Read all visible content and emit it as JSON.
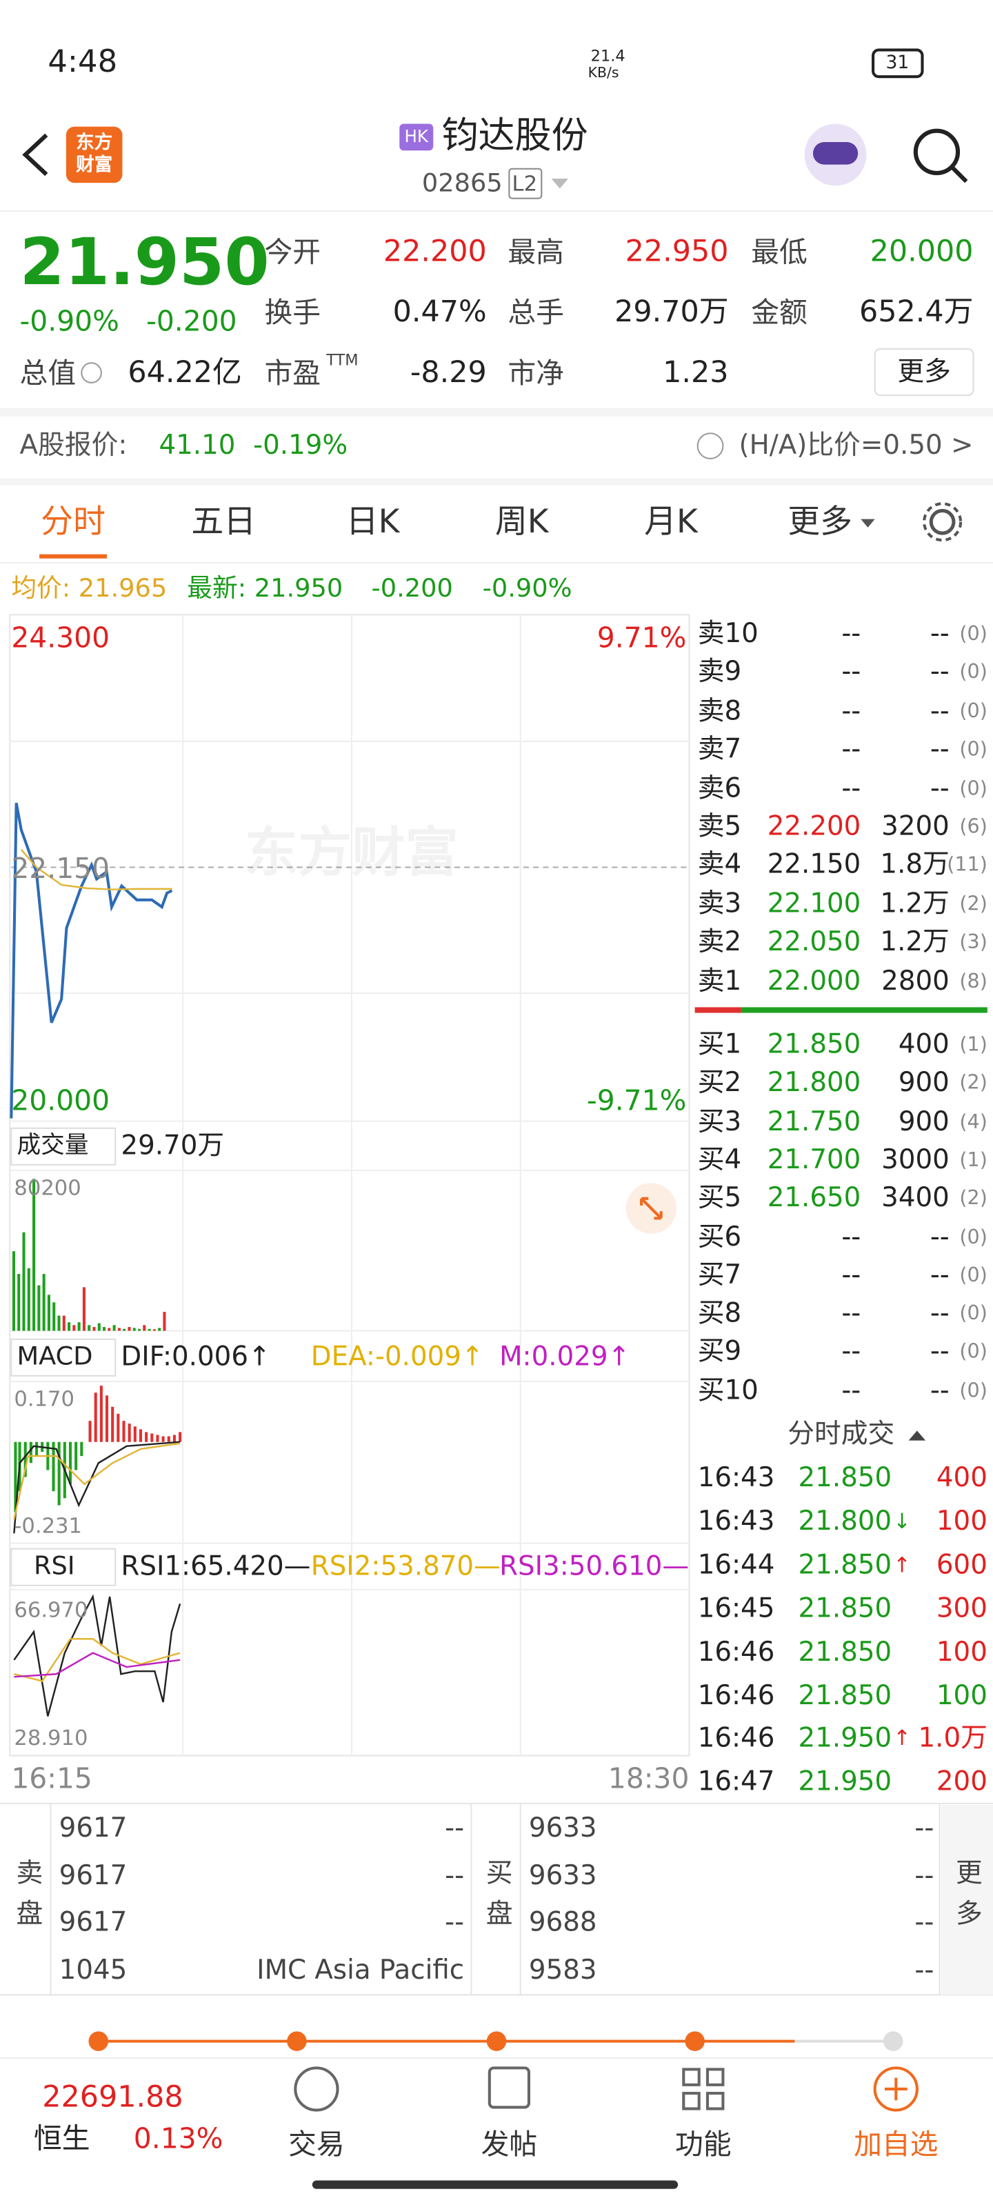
{
  "status": {
    "time": "4:48",
    "net_speed": "21.4",
    "net_unit": "KB/s",
    "battery": "31"
  },
  "header": {
    "logo": "东方财富",
    "market": "HK",
    "name": "钧达股份",
    "code": "02865",
    "level": "L2"
  },
  "quote": {
    "price": "21.950",
    "change_pct": "-0.90%",
    "change": "-0.200",
    "fields": [
      {
        "label": "今开",
        "value": "22.200"
      },
      {
        "label": "最高",
        "value": "22.950"
      },
      {
        "label": "最低",
        "value": "20.000"
      },
      {
        "label": "换手",
        "value": "0.47%"
      },
      {
        "label": "总手",
        "value": "29.70万"
      },
      {
        "label": "金额",
        "value": "652.4万"
      },
      {
        "label": "总值",
        "value": "64.22亿"
      },
      {
        "label": "市盈",
        "sup": "TTM",
        "value": "-8.29"
      },
      {
        "label": "市净",
        "value": "1.23"
      }
    ],
    "more": "更多"
  },
  "a_share": {
    "label": "A股报价:",
    "price": "41.10",
    "change_pct": "-0.19%",
    "ratio": "(H/A)比价=0.50 >"
  },
  "tabs": [
    "分时",
    "五日",
    "日K",
    "周K",
    "月K",
    "更多"
  ],
  "intraday": {
    "avg": "均价: 21.965",
    "latest": "最新: 21.950",
    "change": "-0.200",
    "change_pct": "-0.90%"
  },
  "chart_data": [
    {
      "type": "line",
      "watermark": "东方财富",
      "xlim": [
        0,
        135
      ],
      "xticks": [
        {
          "value": 0,
          "label": "16:15"
        },
        {
          "value": 135,
          "label": "18:30"
        }
      ],
      "ylim": [
        20,
        24.3
      ],
      "yticks": [
        {
          "value": 24.3,
          "label": "24.300"
        },
        {
          "value": 22.15,
          "label": "22.150"
        },
        {
          "value": 20,
          "label": "20.000"
        }
      ],
      "y2lim": [
        -9.71,
        9.71
      ],
      "y2ticks": [
        {
          "value": 9.71,
          "label": "9.71%"
        },
        {
          "value": -9.71,
          "label": "-9.71%"
        }
      ],
      "series": [
        {
          "color": "#2d6bb5",
          "x": [
            0,
            1,
            2,
            4,
            5,
            7,
            8,
            10,
            11,
            13,
            14,
            16,
            17,
            19,
            20,
            22,
            25,
            28,
            30,
            31,
            32
          ],
          "values": [
            20.0,
            22.7,
            22.47,
            22.23,
            22.11,
            21.26,
            20.82,
            21.02,
            21.63,
            21.87,
            21.99,
            22.17,
            22.05,
            22.11,
            21.81,
            21.99,
            21.87,
            21.87,
            21.81,
            21.93,
            21.95
          ]
        },
        {
          "color": "#e2b534",
          "x": [
            2,
            5,
            10,
            15,
            20,
            25,
            32
          ],
          "values": [
            22.3,
            22.15,
            22.0,
            21.97,
            21.96,
            21.965,
            21.965
          ]
        }
      ]
    },
    {
      "type": "bar",
      "label": "成交量",
      "total": "29.70万",
      "xlim": [
        0,
        135
      ],
      "ylim": [
        0,
        80200
      ],
      "yticks": [
        80200
      ],
      "values": [
        42000,
        30000,
        52000,
        33000,
        80200,
        24000,
        30000,
        19000,
        15000,
        8000,
        8000,
        4500,
        3000,
        4500,
        23000,
        3000,
        2000,
        4000,
        2000,
        1500,
        3000,
        1500,
        1000,
        2000,
        1500,
        1000,
        3000,
        1000,
        800,
        1500,
        10000
      ],
      "colors": [
        "#20a020",
        "#20a020",
        "#20a020",
        "#20a020",
        "#20a020",
        "#20a020",
        "#20a020",
        "#20a020",
        "#20a020",
        "#20a020",
        "#e03030",
        "#20a020",
        "#e03030",
        "#20a020",
        "#e03030",
        "#20a020",
        "#e03030",
        "#20a020",
        "#20a020",
        "#e03030",
        "#20a020",
        "#e03030",
        "#20a020",
        "#e03030",
        "#20a020",
        "#20a020",
        "#e03030",
        "#20a020",
        "#e03030",
        "#20a020",
        "#e03030"
      ]
    }
  ],
  "macd": {
    "label": "MACD",
    "dif": "DIF:0.006↑",
    "dea": "DEA:-0.009↑",
    "m": "M:0.029↑",
    "top": "0.170",
    "bottom": "-0.231"
  },
  "rsi": {
    "label": "RSI",
    "rsi1": "RSI1:65.420—",
    "rsi2": "RSI2:53.870—",
    "rsi3": "RSI3:50.610—",
    "top": "66.970",
    "bottom": "28.910"
  },
  "order_book": {
    "asks": [
      [
        "卖10",
        "--",
        "--",
        "(0)"
      ],
      [
        "卖9",
        "--",
        "--",
        "(0)"
      ],
      [
        "卖8",
        "--",
        "--",
        "(0)"
      ],
      [
        "卖7",
        "--",
        "--",
        "(0)"
      ],
      [
        "卖6",
        "--",
        "--",
        "(0)"
      ],
      [
        "卖5",
        "22.200",
        "3200",
        "(6)"
      ],
      [
        "卖4",
        "22.150",
        "1.8万",
        "(11)"
      ],
      [
        "卖3",
        "22.100",
        "1.2万",
        "(2)"
      ],
      [
        "卖2",
        "22.050",
        "1.2万",
        "(3)"
      ],
      [
        "卖1",
        "22.000",
        "2800",
        "(8)"
      ]
    ],
    "bids": [
      [
        "买1",
        "21.850",
        "400",
        "(1)"
      ],
      [
        "买2",
        "21.800",
        "900",
        "(2)"
      ],
      [
        "买3",
        "21.750",
        "900",
        "(4)"
      ],
      [
        "买4",
        "21.700",
        "3000",
        "(1)"
      ],
      [
        "买5",
        "21.650",
        "3400",
        "(2)"
      ],
      [
        "买6",
        "--",
        "--",
        "(0)"
      ],
      [
        "买7",
        "--",
        "--",
        "(0)"
      ],
      [
        "买8",
        "--",
        "--",
        "(0)"
      ],
      [
        "买9",
        "--",
        "--",
        "(0)"
      ],
      [
        "买10",
        "--",
        "--",
        "(0)"
      ]
    ]
  },
  "trades": {
    "title": "分时成交",
    "rows": [
      {
        "time": "16:43",
        "price": "21.850",
        "volume": "400",
        "color": "#e02020"
      },
      {
        "time": "16:43",
        "price": "21.800",
        "arrow": "↓",
        "volume": "100",
        "color": "#e02020"
      },
      {
        "time": "16:44",
        "price": "21.850",
        "arrow": "↑",
        "volume": "600",
        "color": "#e02020"
      },
      {
        "time": "16:45",
        "price": "21.850",
        "volume": "300",
        "color": "#e02020"
      },
      {
        "time": "16:46",
        "price": "21.850",
        "volume": "100",
        "color": "#e02020"
      },
      {
        "time": "16:46",
        "price": "21.850",
        "volume": "100",
        "color": "#1a9a1a"
      },
      {
        "time": "16:46",
        "price": "21.950",
        "arrow": "↑",
        "volume": "1.0万",
        "color": "#e02020"
      },
      {
        "time": "16:47",
        "price": "21.950",
        "volume": "200",
        "color": "#e02020"
      }
    ]
  },
  "brokers": {
    "sell_label": "卖盘",
    "buy_label": "买盘",
    "more": "更多",
    "sell": [
      [
        "9617",
        "--"
      ],
      [
        "9617",
        "--"
      ],
      [
        "9617",
        "--"
      ],
      [
        "1045",
        "IMC Asia Pacific"
      ]
    ],
    "buy": [
      [
        "9633",
        "--"
      ],
      [
        "9633",
        "--"
      ],
      [
        "9688",
        "--"
      ],
      [
        "9583",
        "--"
      ]
    ]
  },
  "bottom": {
    "index_value": "22691.88",
    "index_name": "恒生",
    "index_change": "0.13%",
    "nav": [
      "交易",
      "发帖",
      "功能",
      "加自选"
    ]
  }
}
